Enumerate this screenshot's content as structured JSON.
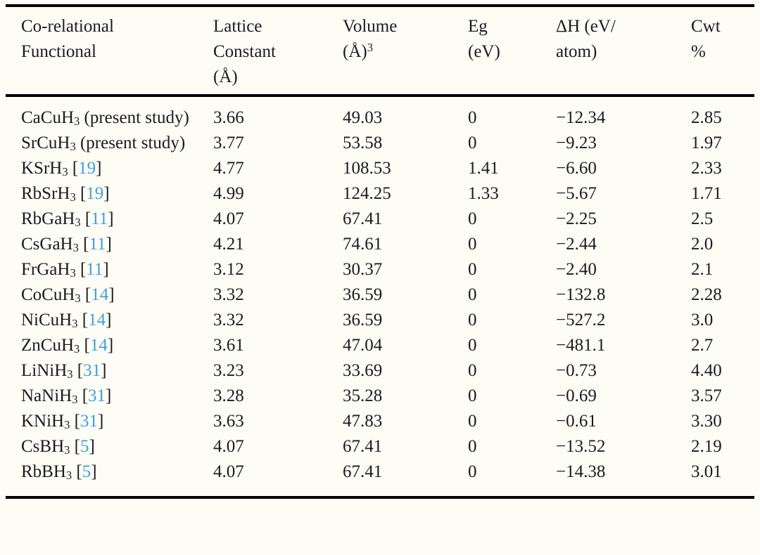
{
  "page": {
    "background": "#fdfdf6",
    "text_color": "#1b1b1b",
    "rule_color": "#000000",
    "citation_color": "#3fa0dc"
  },
  "table": {
    "headers": {
      "functional": {
        "line1": "Co-relational",
        "line2": "Functional"
      },
      "lattice": {
        "line1": "Lattice",
        "line2": "Constant",
        "line3": "(Å)"
      },
      "volume": {
        "line1": "Volume",
        "line2_base": "(Å)",
        "line2_sup": "3"
      },
      "eg": {
        "line1": "Eg",
        "line2": "(eV)"
      },
      "dh": {
        "line1": "ΔH (eV/",
        "line2": "atom)"
      },
      "cwt": {
        "line1": "Cwt",
        "line2": "%"
      }
    },
    "rows": [
      {
        "compound": "CaCuH",
        "sub": "3",
        "note": " (present study)",
        "ref": "",
        "lattice_constant": "3.66",
        "volume": "49.03",
        "eg": "0",
        "delta_h": "−12.34",
        "cwt_percent": "2.85"
      },
      {
        "compound": "SrCuH",
        "sub": "3",
        "note": " (present study)",
        "ref": "",
        "lattice_constant": "3.77",
        "volume": "53.58",
        "eg": "0",
        "delta_h": "−9.23",
        "cwt_percent": "1.97"
      },
      {
        "compound": "KSrH",
        "sub": "3",
        "note": "",
        "ref": "19",
        "lattice_constant": "4.77",
        "volume": "108.53",
        "eg": "1.41",
        "delta_h": "−6.60",
        "cwt_percent": "2.33"
      },
      {
        "compound": "RbSrH",
        "sub": "3",
        "note": "",
        "ref": "19",
        "lattice_constant": "4.99",
        "volume": "124.25",
        "eg": "1.33",
        "delta_h": "−5.67",
        "cwt_percent": "1.71"
      },
      {
        "compound": "RbGaH",
        "sub": "3",
        "note": "",
        "ref": "11",
        "lattice_constant": "4.07",
        "volume": "67.41",
        "eg": "0",
        "delta_h": "−2.25",
        "cwt_percent": "2.5"
      },
      {
        "compound": "CsGaH",
        "sub": "3",
        "note": "",
        "ref": "11",
        "lattice_constant": "4.21",
        "volume": "74.61",
        "eg": "0",
        "delta_h": "−2.44",
        "cwt_percent": "2.0"
      },
      {
        "compound": "FrGaH",
        "sub": "3",
        "note": "",
        "ref": "11",
        "lattice_constant": "3.12",
        "volume": "30.37",
        "eg": "0",
        "delta_h": "−2.40",
        "cwt_percent": "2.1"
      },
      {
        "compound": "CoCuH",
        "sub": "3",
        "note": "",
        "ref": "14",
        "lattice_constant": "3.32",
        "volume": "36.59",
        "eg": "0",
        "delta_h": "−132.8",
        "cwt_percent": "2.28"
      },
      {
        "compound": "NiCuH",
        "sub": "3",
        "note": "",
        "ref": "14",
        "lattice_constant": "3.32",
        "volume": "36.59",
        "eg": "0",
        "delta_h": "−527.2",
        "cwt_percent": "3.0"
      },
      {
        "compound": "ZnCuH",
        "sub": "3",
        "note": "",
        "ref": "14",
        "lattice_constant": "3.61",
        "volume": "47.04",
        "eg": "0",
        "delta_h": "−481.1",
        "cwt_percent": "2.7"
      },
      {
        "compound": "LiNiH",
        "sub": "3",
        "note": "",
        "ref": "31",
        "lattice_constant": "3.23",
        "volume": "33.69",
        "eg": "0",
        "delta_h": "−0.73",
        "cwt_percent": "4.40"
      },
      {
        "compound": "NaNiH",
        "sub": "3",
        "note": "",
        "ref": "31",
        "lattice_constant": "3.28",
        "volume": "35.28",
        "eg": "0",
        "delta_h": "−0.69",
        "cwt_percent": "3.57"
      },
      {
        "compound": "KNiH",
        "sub": "3",
        "note": "",
        "ref": "31",
        "lattice_constant": "3.63",
        "volume": "47.83",
        "eg": "0",
        "delta_h": "−0.61",
        "cwt_percent": "3.30"
      },
      {
        "compound": "CsBH",
        "sub": "3",
        "note": "",
        "ref": "5",
        "lattice_constant": "4.07",
        "volume": "67.41",
        "eg": "0",
        "delta_h": "−13.52",
        "cwt_percent": "2.19"
      },
      {
        "compound": "RbBH",
        "sub": "3",
        "note": "",
        "ref": "5",
        "lattice_constant": "4.07",
        "volume": "67.41",
        "eg": "0",
        "delta_h": "−14.38",
        "cwt_percent": "3.01"
      }
    ]
  }
}
